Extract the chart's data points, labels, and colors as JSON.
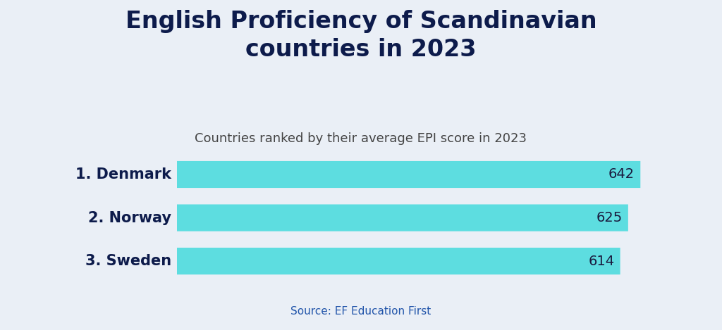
{
  "title": "English Proficiency of Scandinavian\ncountries in 2023",
  "subtitle": "Countries ranked by their average EPI score in 2023",
  "source": "Source: EF Education First",
  "categories": [
    "1. Denmark",
    "2. Norway",
    "3. Sweden"
  ],
  "values": [
    642,
    625,
    614
  ],
  "bar_color": "#5DDDE0",
  "bar_value_color": "#1a1a3e",
  "title_color": "#0d1b4b",
  "subtitle_color": "#444444",
  "source_color": "#2255aa",
  "label_color": "#0d1b4b",
  "background_color": "#eaeff6",
  "title_fontsize": 24,
  "subtitle_fontsize": 13,
  "label_fontsize": 15,
  "value_fontsize": 14,
  "source_fontsize": 11,
  "xlim_max": 700,
  "bar_height": 0.62,
  "rounding_size": 0.025
}
